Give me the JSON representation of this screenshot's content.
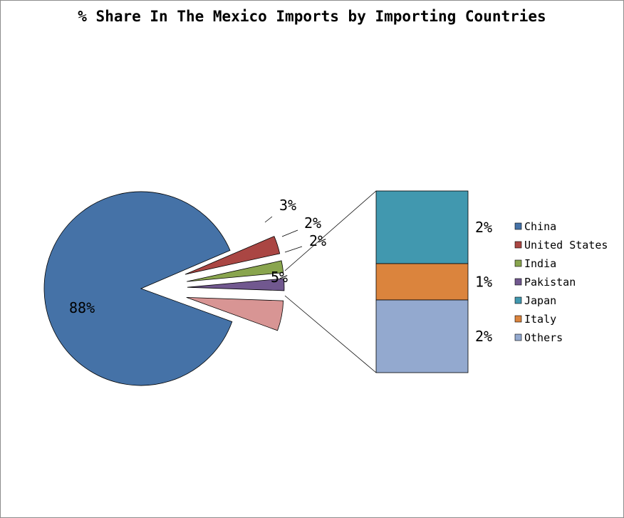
{
  "chart_data": {
    "type": "pie",
    "subtype": "bar-of-pie",
    "title": "% Share In The Mexico Imports by Importing Countries",
    "legend_position": "right",
    "pie": [
      {
        "name": "China",
        "value": 88,
        "label": "88%",
        "color": "#4572a7"
      },
      {
        "name": "United States",
        "value": 3,
        "label": "3%",
        "color": "#aa4643"
      },
      {
        "name": "India",
        "value": 2,
        "label": "2%",
        "color": "#89a54e"
      },
      {
        "name": "Pakistan",
        "value": 2,
        "label": "2%",
        "color": "#71588f"
      },
      {
        "name": "Other",
        "value": 5,
        "label": "5%",
        "color": "#d89594"
      }
    ],
    "bar": [
      {
        "name": "Japan",
        "value": 2,
        "label": "2%",
        "color": "#4198af"
      },
      {
        "name": "Italy",
        "value": 1,
        "label": "1%",
        "color": "#db843d"
      },
      {
        "name": "Others",
        "value": 2,
        "label": "2%",
        "color": "#93a9cf"
      }
    ],
    "legend": [
      "China",
      "United States",
      "India",
      "Pakistan",
      "Japan",
      "Italy",
      "Others"
    ]
  }
}
